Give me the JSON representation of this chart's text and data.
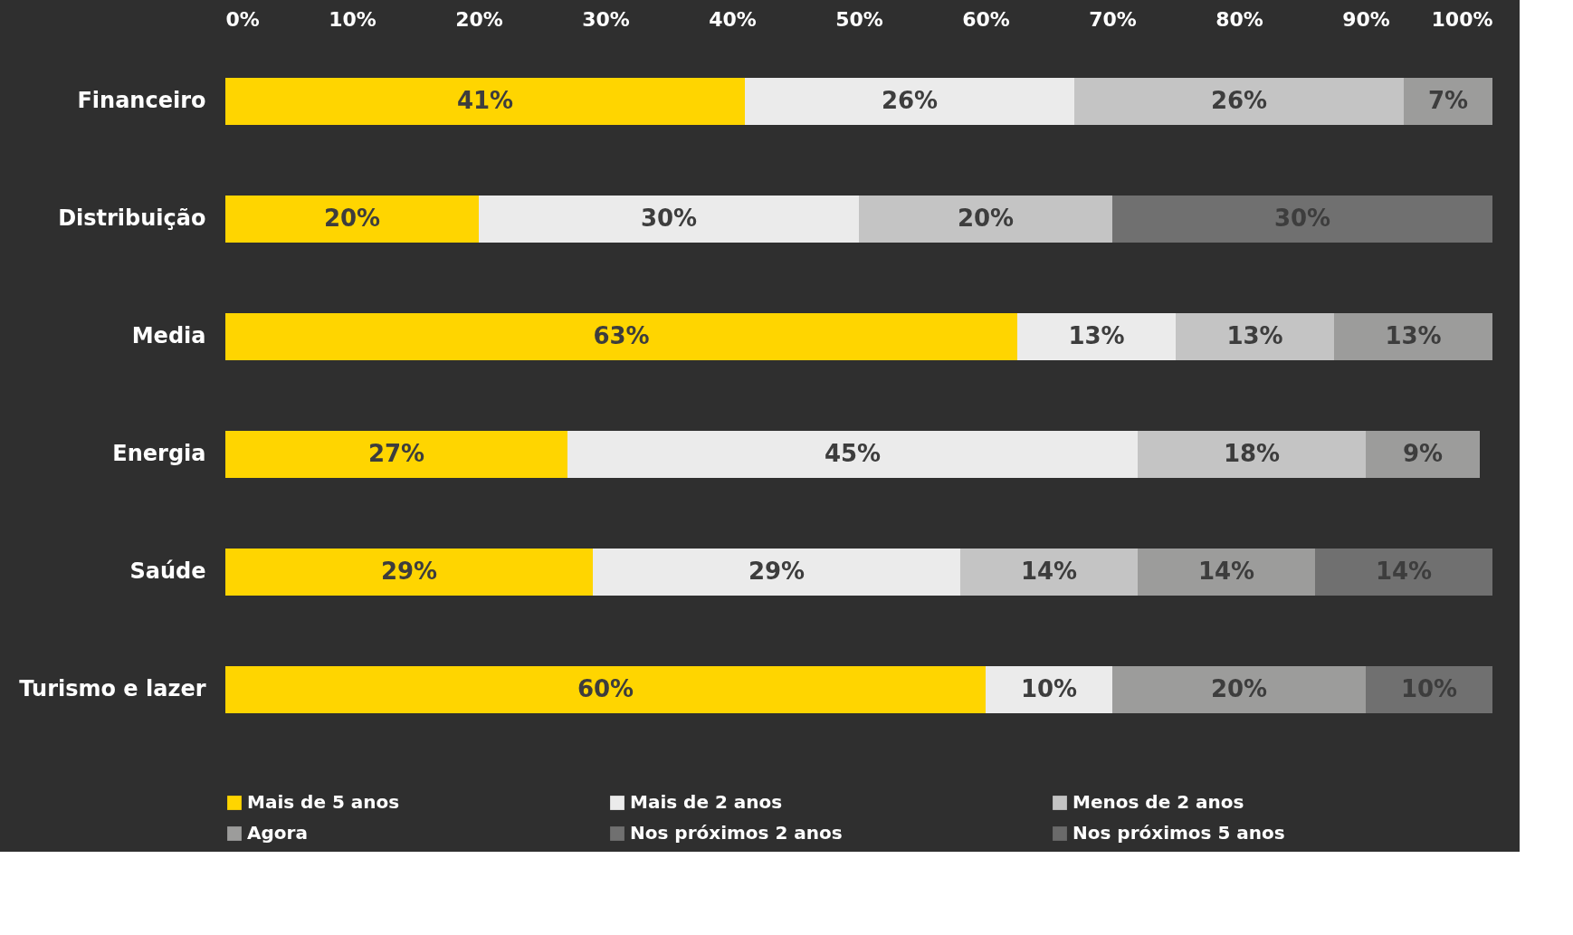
{
  "chart_data": {
    "type": "bar",
    "orientation": "horizontal",
    "stacked": true,
    "categories": [
      "Financeiro",
      "Distribuição",
      "Media",
      "Energia",
      "Saúde",
      "Turismo e lazer"
    ],
    "series": [
      {
        "name": "Mais de 5 anos",
        "color": "#ffd500",
        "values": [
          41,
          20,
          62.5,
          27,
          29,
          60
        ],
        "value_labels": [
          "41%",
          "20%",
          "63%",
          "27%",
          "29%",
          "60%"
        ]
      },
      {
        "name": "Mais de 2 anos",
        "color": "#ebebeb",
        "values": [
          26,
          30,
          12.5,
          45,
          29,
          10
        ],
        "value_labels": [
          "26%",
          "30%",
          "13%",
          "45%",
          "29%",
          "10%"
        ]
      },
      {
        "name": "Menos de 2 anos",
        "color": "#c4c4c4",
        "values": [
          26,
          20,
          12.5,
          18,
          14,
          null
        ],
        "value_labels": [
          "26%",
          "20%",
          "13%",
          "18%",
          "14%",
          null
        ]
      },
      {
        "name": "Agora",
        "color": "#9c9c9b",
        "values": [
          7,
          null,
          12.5,
          9,
          14,
          20
        ],
        "value_labels": [
          "7%",
          null,
          "13%",
          "9%",
          "14%",
          "20%"
        ]
      },
      {
        "name": "Nos próximos 2 anos",
        "color": "#707070",
        "values": [
          null,
          30,
          null,
          null,
          14,
          10
        ],
        "value_labels": [
          null,
          "30%",
          null,
          null,
          "14%",
          "10%"
        ]
      },
      {
        "name": "Nos próximos 5 anos",
        "color": "#6a6a6a",
        "values": [
          null,
          null,
          null,
          null,
          null,
          null
        ],
        "value_labels": [
          null,
          null,
          null,
          null,
          null,
          null
        ]
      }
    ],
    "xlim": [
      0,
      100
    ],
    "xticks": [
      {
        "value": 0,
        "label": "0%"
      },
      {
        "value": 10,
        "label": "10%"
      },
      {
        "value": 20,
        "label": "20%"
      },
      {
        "value": 30,
        "label": "30%"
      },
      {
        "value": 40,
        "label": "40%"
      },
      {
        "value": 50,
        "label": "50%"
      },
      {
        "value": 60,
        "label": "60%"
      },
      {
        "value": 70,
        "label": "70%"
      },
      {
        "value": 80,
        "label": "80%"
      },
      {
        "value": 90,
        "label": "90%"
      },
      {
        "value": 100,
        "label": "100%"
      }
    ],
    "grid": false,
    "legend": "bottom"
  }
}
